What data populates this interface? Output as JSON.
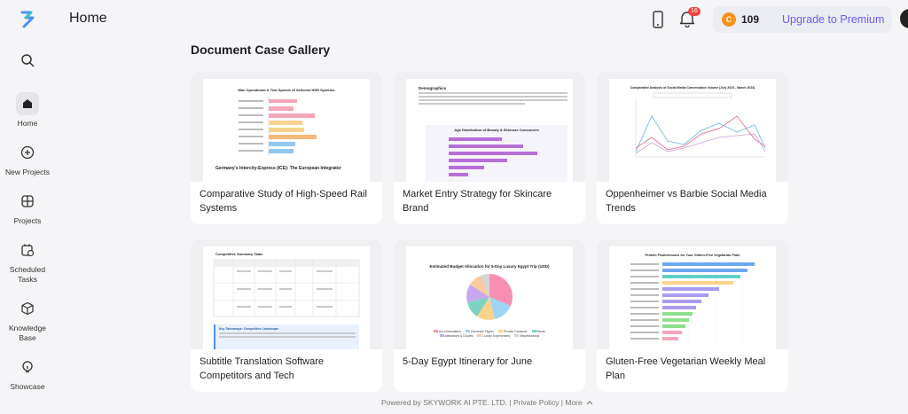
{
  "header": {
    "title": "Home",
    "notification_count": "16",
    "credits": "109",
    "upgrade_label": "Upgrade to Premium"
  },
  "sidebar": {
    "items": [
      {
        "label": "Home",
        "icon": "home-icon"
      },
      {
        "label": "New Projects",
        "icon": "plus-circle-icon"
      },
      {
        "label": "Projects",
        "icon": "grid-icon"
      },
      {
        "label": "Scheduled Tasks",
        "icon": "calendar-clock-icon"
      },
      {
        "label": "Knowledge Base",
        "icon": "cube-icon"
      },
      {
        "label": "Showcase",
        "icon": "lightbulb-icon"
      }
    ]
  },
  "gallery": {
    "title": "Document Case Gallery",
    "cards": [
      {
        "title": "Comparative Study of High-Speed Rail Systems",
        "thumb_title": "Max Operational & Test Speeds of Selected HSR Systems",
        "thumb_caption": "Germany's Intercity-Express (ICE): The European Integrator"
      },
      {
        "title": "Market Entry Strategy for Skincare Brand",
        "thumb_title": "Demographics",
        "thumb_caption": "Age Distribution of Beauty & Skincare Consumers"
      },
      {
        "title": "Oppenheimer vs Barbie Social Media Trends",
        "thumb_title": "Comparative Analysis of Social Media Conversation Volume (July 2023 - March 2024)"
      },
      {
        "title": "Subtitle Translation Software Competitors and Tech",
        "thumb_title": "Competitive Summary Table",
        "thumb_caption": "Key Takeaways: Competitive Landscape"
      },
      {
        "title": "5-Day Egypt Itinerary for June",
        "thumb_title": "Estimated Budget Allocation for 5-Day Luxury Egypt Trip (USD)",
        "legend": [
          "Accommodation",
          "Domestic Flights",
          "Private Transport",
          "Meals",
          "Attractions & Guides",
          "Luxury Experiences",
          "Miscellaneous"
        ]
      },
      {
        "title": "Gluten-Free Vegetarian Weekly Meal Plan",
        "thumb_title": "Protein Powerhouses for Your Gluten-Free Vegetarian Plate"
      }
    ]
  },
  "footer": {
    "text": "Powered by SKYWORK AI PTE. LTD. | Private Policy | More"
  },
  "colors": {
    "accent": "#6b5cf0",
    "badge": "#f04438",
    "coin": "#f7931a"
  }
}
